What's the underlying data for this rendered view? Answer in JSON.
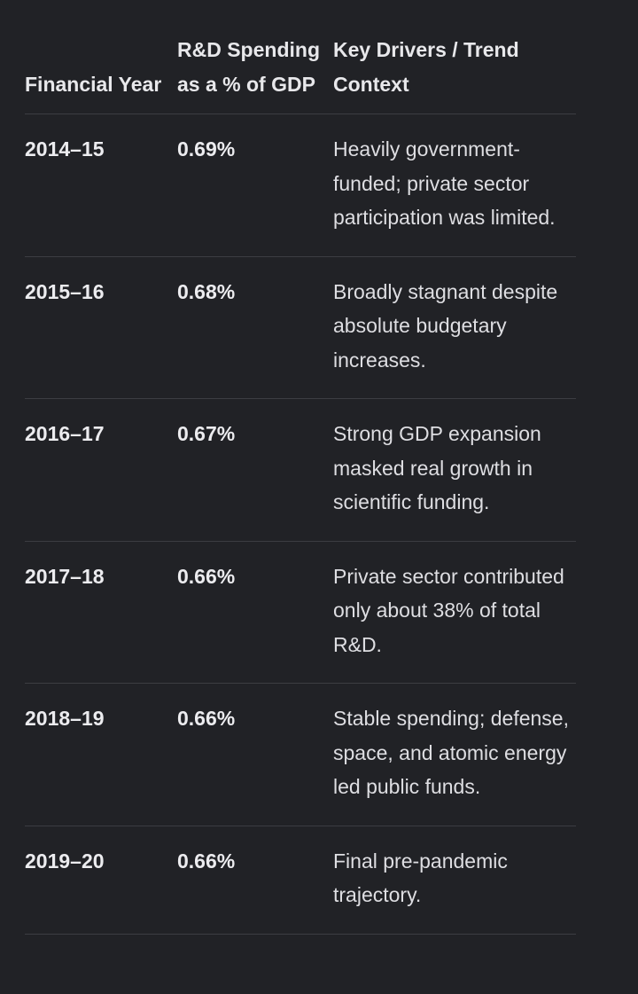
{
  "table": {
    "headers": {
      "year": "Financial Year",
      "pct": "R&D Spending as a % of GDP",
      "context": "Key Drivers / Trend Context"
    },
    "rows": [
      {
        "year": "2014–15",
        "pct": "0.69%",
        "context": "Heavily government-funded; private sector participation was limited."
      },
      {
        "year": "2015–16",
        "pct": "0.68%",
        "context": "Broadly stagnant despite absolute budgetary increases."
      },
      {
        "year": "2016–17",
        "pct": "0.67%",
        "context": "Strong GDP expansion masked real growth in scientific funding."
      },
      {
        "year": "2017–18",
        "pct": "0.66%",
        "context": "Private sector contributed only about 38% of total R&D."
      },
      {
        "year": "2018–19",
        "pct": "0.66%",
        "context": "Stable spending; defense, space, and atomic energy led public funds."
      },
      {
        "year": "2019–20",
        "pct": "0.66%",
        "context": "Final pre-pandemic trajectory."
      }
    ]
  }
}
